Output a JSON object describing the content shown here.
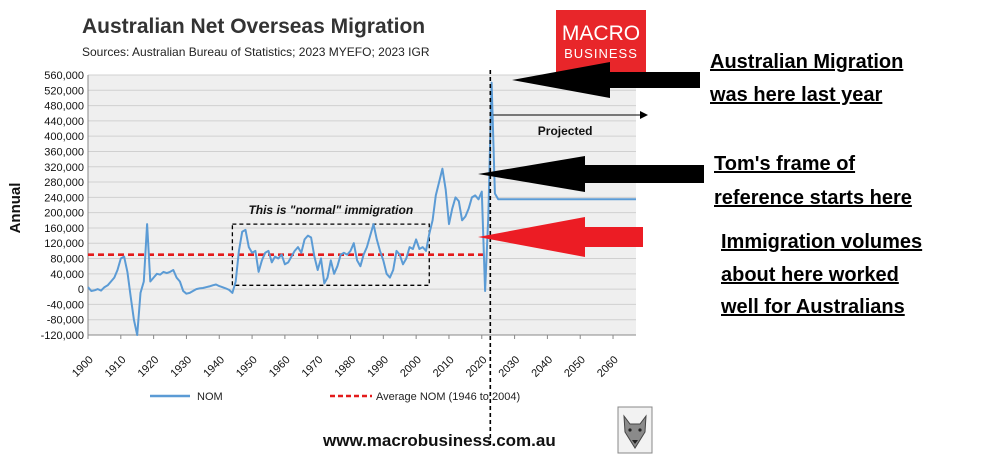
{
  "colors": {
    "series_line": "#5b9bd5",
    "average_line": "#e31b1b",
    "plot_background": "#efefef",
    "logo_background": "#e8262a",
    "arrow_black": "#000000",
    "arrow_red": "#ec1c24"
  },
  "logo": {
    "line1": "MACRO",
    "line2": "BUSINESS",
    "icon": "wolf-head-icon"
  },
  "footer": {
    "url": "www.macrobusiness.com.au"
  },
  "callouts": [
    {
      "lines": [
        "Australian Migration",
        "was here last year"
      ],
      "arrow_color": "black"
    },
    {
      "lines": [
        "Tom's frame of",
        "reference starts here"
      ],
      "arrow_color": "black"
    },
    {
      "lines": [
        "Immigration volumes",
        "about here worked",
        "well for Australians"
      ],
      "arrow_color": "red"
    }
  ],
  "chart_data": {
    "type": "line",
    "title": "Australian Net Overseas Migration",
    "subtitle": "Sources: Australian Bureau of Statistics; 2023 MYEFO; 2023 IGR",
    "ylabel": "Annual",
    "xlabel": "",
    "xlim": [
      1900,
      2067
    ],
    "ylim": [
      -120000,
      560000
    ],
    "x_ticks": [
      "1900",
      "1910",
      "1920",
      "1930",
      "1940",
      "1950",
      "1960",
      "1970",
      "1980",
      "1990",
      "2000",
      "2010",
      "2020",
      "2030",
      "2040",
      "2050",
      "2060"
    ],
    "y_ticks": [
      "560,000",
      "520,000",
      "480,000",
      "440,000",
      "400,000",
      "360,000",
      "320,000",
      "280,000",
      "240,000",
      "200,000",
      "160,000",
      "120,000",
      "80,000",
      "40,000",
      "0",
      "-40,000",
      "-80,000",
      "-120,000"
    ],
    "grid": "horizontal",
    "legend_position": "bottom",
    "legend": [
      "NOM",
      "Average NOM (1946 to 2004)"
    ],
    "annotations": {
      "normal_box_label": "This is \"normal\" immigration",
      "normal_box_range": {
        "x": [
          1944,
          2004
        ],
        "y": [
          10000,
          170000
        ]
      },
      "projected_label": "Projected",
      "projection_start": 2022
    },
    "average_nom": 90000,
    "series": [
      {
        "name": "NOM",
        "x": [
          1900,
          1901,
          1902,
          1903,
          1904,
          1905,
          1906,
          1907,
          1908,
          1909,
          1910,
          1911,
          1912,
          1913,
          1914,
          1915,
          1916,
          1917,
          1918,
          1919,
          1920,
          1921,
          1922,
          1923,
          1924,
          1925,
          1926,
          1927,
          1928,
          1929,
          1930,
          1931,
          1932,
          1933,
          1934,
          1935,
          1936,
          1937,
          1938,
          1939,
          1940,
          1941,
          1942,
          1943,
          1944,
          1945,
          1946,
          1947,
          1948,
          1949,
          1950,
          1951,
          1952,
          1953,
          1954,
          1955,
          1956,
          1957,
          1958,
          1959,
          1960,
          1961,
          1962,
          1963,
          1964,
          1965,
          1966,
          1967,
          1968,
          1969,
          1970,
          1971,
          1972,
          1973,
          1974,
          1975,
          1976,
          1977,
          1978,
          1979,
          1980,
          1981,
          1982,
          1983,
          1984,
          1985,
          1986,
          1987,
          1988,
          1989,
          1990,
          1991,
          1992,
          1993,
          1994,
          1995,
          1996,
          1997,
          1998,
          1999,
          2000,
          2001,
          2002,
          2003,
          2004,
          2005,
          2006,
          2007,
          2008,
          2009,
          2010,
          2011,
          2012,
          2013,
          2014,
          2015,
          2016,
          2017,
          2018,
          2019,
          2020,
          2021,
          2022,
          2023,
          2024,
          2025,
          2026,
          2027,
          2030,
          2040,
          2050,
          2060,
          2067
        ],
        "values": [
          5000,
          -5000,
          -3000,
          0,
          -4000,
          5000,
          10000,
          20000,
          30000,
          50000,
          80000,
          85000,
          45000,
          -20000,
          -80000,
          -120000,
          -10000,
          20000,
          170000,
          20000,
          30000,
          40000,
          38000,
          45000,
          42000,
          45000,
          50000,
          30000,
          20000,
          -5000,
          -12000,
          -10000,
          -5000,
          0,
          2000,
          3000,
          5000,
          7000,
          10000,
          12000,
          8000,
          5000,
          2000,
          -2000,
          -10000,
          20000,
          100000,
          150000,
          155000,
          110000,
          95000,
          100000,
          45000,
          75000,
          95000,
          100000,
          70000,
          85000,
          80000,
          90000,
          65000,
          70000,
          85000,
          100000,
          110000,
          95000,
          130000,
          140000,
          135000,
          85000,
          50000,
          80000,
          15000,
          30000,
          75000,
          40000,
          60000,
          90000,
          95000,
          90000,
          100000,
          120000,
          75000,
          60000,
          90000,
          110000,
          140000,
          170000,
          130000,
          100000,
          75000,
          40000,
          30000,
          50000,
          100000,
          90000,
          65000,
          80000,
          110000,
          105000,
          130000,
          105000,
          110000,
          100000,
          145000,
          180000,
          245000,
          280000,
          315000,
          260000,
          170000,
          210000,
          240000,
          230000,
          180000,
          190000,
          210000,
          240000,
          245000,
          235000,
          255000,
          -5000,
          190000,
          540000,
          250000,
          235000,
          235000,
          235000,
          235000,
          235000,
          235000,
          235000,
          235000
        ]
      }
    ]
  }
}
